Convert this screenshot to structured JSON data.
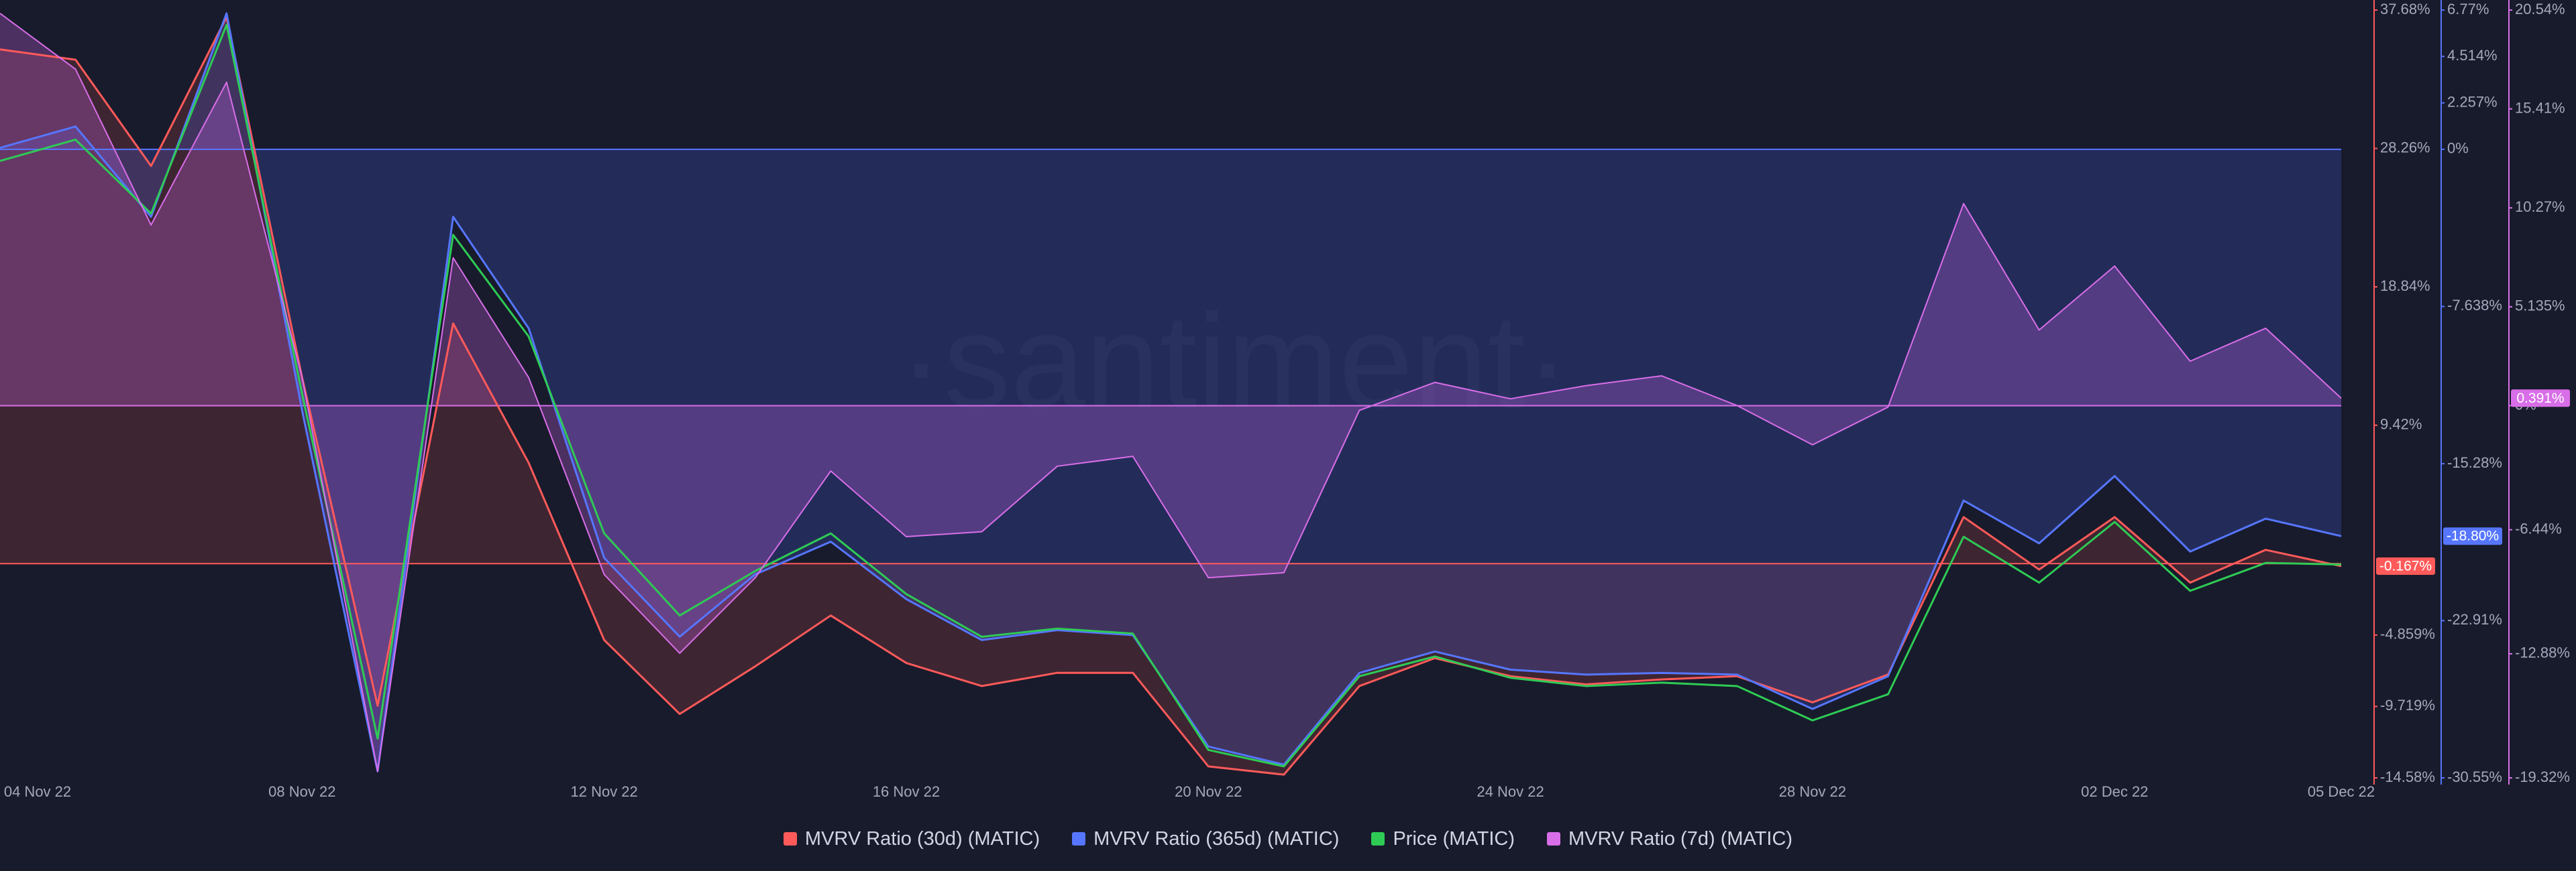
{
  "chart_data": {
    "type": "line",
    "watermark": "·santiment·",
    "categories": [
      "04 Nov 22",
      null,
      null,
      null,
      "08 Nov 22",
      null,
      null,
      null,
      "12 Nov 22",
      null,
      null,
      null,
      "16 Nov 22",
      null,
      null,
      null,
      "20 Nov 22",
      null,
      null,
      null,
      "24 Nov 22",
      null,
      null,
      null,
      "28 Nov 22",
      null,
      null,
      null,
      "02 Dec 22",
      null,
      null,
      "05 Dec 22"
    ],
    "ylim": [
      -14.58,
      37.68
    ],
    "yticks": [
      {
        "value": 37.68,
        "label": "37.68%"
      },
      {
        "value": 28.26,
        "label": "28.26%"
      },
      {
        "value": 18.84,
        "label": "18.84%"
      },
      {
        "value": 9.42,
        "label": "9.42%"
      },
      {
        "value": -4.859,
        "label": "-4.859%"
      },
      {
        "value": -9.719,
        "label": "-9.719%"
      },
      {
        "value": -14.58,
        "label": "-14.58%"
      }
    ],
    "y2lim": [
      -30.55,
      6.77
    ],
    "y2ticks": [
      {
        "value": 6.77,
        "label": "6.77%"
      },
      {
        "value": 4.514,
        "label": "4.514%"
      },
      {
        "value": 2.257,
        "label": "2.257%"
      },
      {
        "value": 0,
        "label": "0%"
      },
      {
        "value": -7.638,
        "label": "-7.638%"
      },
      {
        "value": -15.28,
        "label": "-15.28%"
      },
      {
        "value": -22.91,
        "label": "-22.91%"
      },
      {
        "value": -30.55,
        "label": "-30.55%"
      }
    ],
    "y3lim": [
      -19.32,
      20.54
    ],
    "y3ticks": [
      {
        "value": 20.54,
        "label": "20.54%"
      },
      {
        "value": 15.41,
        "label": "15.41%"
      },
      {
        "value": 10.27,
        "label": "10.27%"
      },
      {
        "value": 5.135,
        "label": "5.135%"
      },
      {
        "value": 0,
        "label": "0%"
      },
      {
        "value": -6.44,
        "label": "-6.44%"
      },
      {
        "value": -12.88,
        "label": "-12.88%"
      },
      {
        "value": -19.32,
        "label": "-19.32%"
      }
    ],
    "series": [
      {
        "name": "MVRV Ratio (30d) (MATIC)",
        "color": "#ff5a5a",
        "axis": "y",
        "area": true,
        "values": [
          35.0,
          34.3,
          27.07,
          37.2,
          12.67,
          -9.67,
          16.35,
          6.86,
          -5.2,
          -10.23,
          -6.99,
          -3.53,
          -6.76,
          -8.33,
          -7.43,
          -7.43,
          -13.8,
          -14.36,
          -8.33,
          -6.43,
          -7.66,
          -8.22,
          -7.88,
          -7.66,
          -9.44,
          -7.55,
          3.17,
          -0.4,
          3.17,
          -1.29,
          0.94,
          -0.167
        ],
        "value_labels": [
          null,
          null,
          null,
          null,
          null,
          null,
          null,
          null,
          null,
          null,
          null,
          null,
          null,
          null,
          null,
          null,
          null,
          null,
          null,
          null,
          null,
          null,
          null,
          null,
          null,
          null,
          null,
          null,
          null,
          null,
          null,
          "-0.167%"
        ]
      },
      {
        "name": "MVRV Ratio (365d) (MATIC)",
        "color": "#5676ff",
        "axis": "y2",
        "area": true,
        "values": [
          0.07,
          1.11,
          -3.28,
          6.61,
          -12.69,
          -30.23,
          -3.28,
          -8.7,
          -19.86,
          -23.69,
          -20.66,
          -19.07,
          -21.86,
          -23.85,
          -23.37,
          -23.61,
          -29.03,
          -29.91,
          -25.45,
          -24.41,
          -25.29,
          -25.53,
          -25.45,
          -25.53,
          -27.2,
          -25.61,
          -17.07,
          -19.15,
          -15.88,
          -19.55,
          -17.95,
          -18.8
        ],
        "value_labels": [
          null,
          null,
          null,
          null,
          null,
          null,
          null,
          null,
          null,
          null,
          null,
          null,
          null,
          null,
          null,
          null,
          null,
          null,
          null,
          null,
          null,
          null,
          null,
          null,
          null,
          null,
          null,
          null,
          null,
          null,
          null,
          "-18.80%"
        ]
      },
      {
        "name": "Price (MATIC)",
        "color": "#2ecb55",
        "axis": "y",
        "area": false,
        "values": [
          27.41,
          28.86,
          23.83,
          36.67,
          11.55,
          -11.9,
          22.38,
          15.46,
          2.06,
          -3.53,
          -0.5,
          2.06,
          -2.07,
          -4.98,
          -4.42,
          -4.76,
          -12.68,
          -13.8,
          -7.66,
          -6.32,
          -7.77,
          -8.33,
          -8.1,
          -8.33,
          -10.67,
          -8.89,
          1.83,
          -1.29,
          2.84,
          -1.85,
          0.05,
          -0.06
        ]
      },
      {
        "name": "MVRV Ratio (7d) (MATIC)",
        "color": "#d86ee8",
        "axis": "y3",
        "area": true,
        "values": [
          20.37,
          17.47,
          9.38,
          16.79,
          1.46,
          -18.98,
          7.68,
          1.46,
          -8.76,
          -12.85,
          -8.93,
          -3.39,
          -6.8,
          -6.54,
          -3.14,
          -2.63,
          -8.93,
          -8.67,
          -0.24,
          1.21,
          0.36,
          1.04,
          1.55,
          0.01,
          -2.03,
          -0.07,
          10.49,
          3.93,
          7.25,
          2.31,
          4.02,
          0.391
        ],
        "value_labels": [
          null,
          null,
          null,
          null,
          null,
          null,
          null,
          null,
          null,
          null,
          null,
          null,
          null,
          null,
          null,
          null,
          null,
          null,
          null,
          null,
          null,
          null,
          null,
          null,
          null,
          null,
          null,
          null,
          null,
          null,
          null,
          "0.391%"
        ]
      }
    ]
  }
}
